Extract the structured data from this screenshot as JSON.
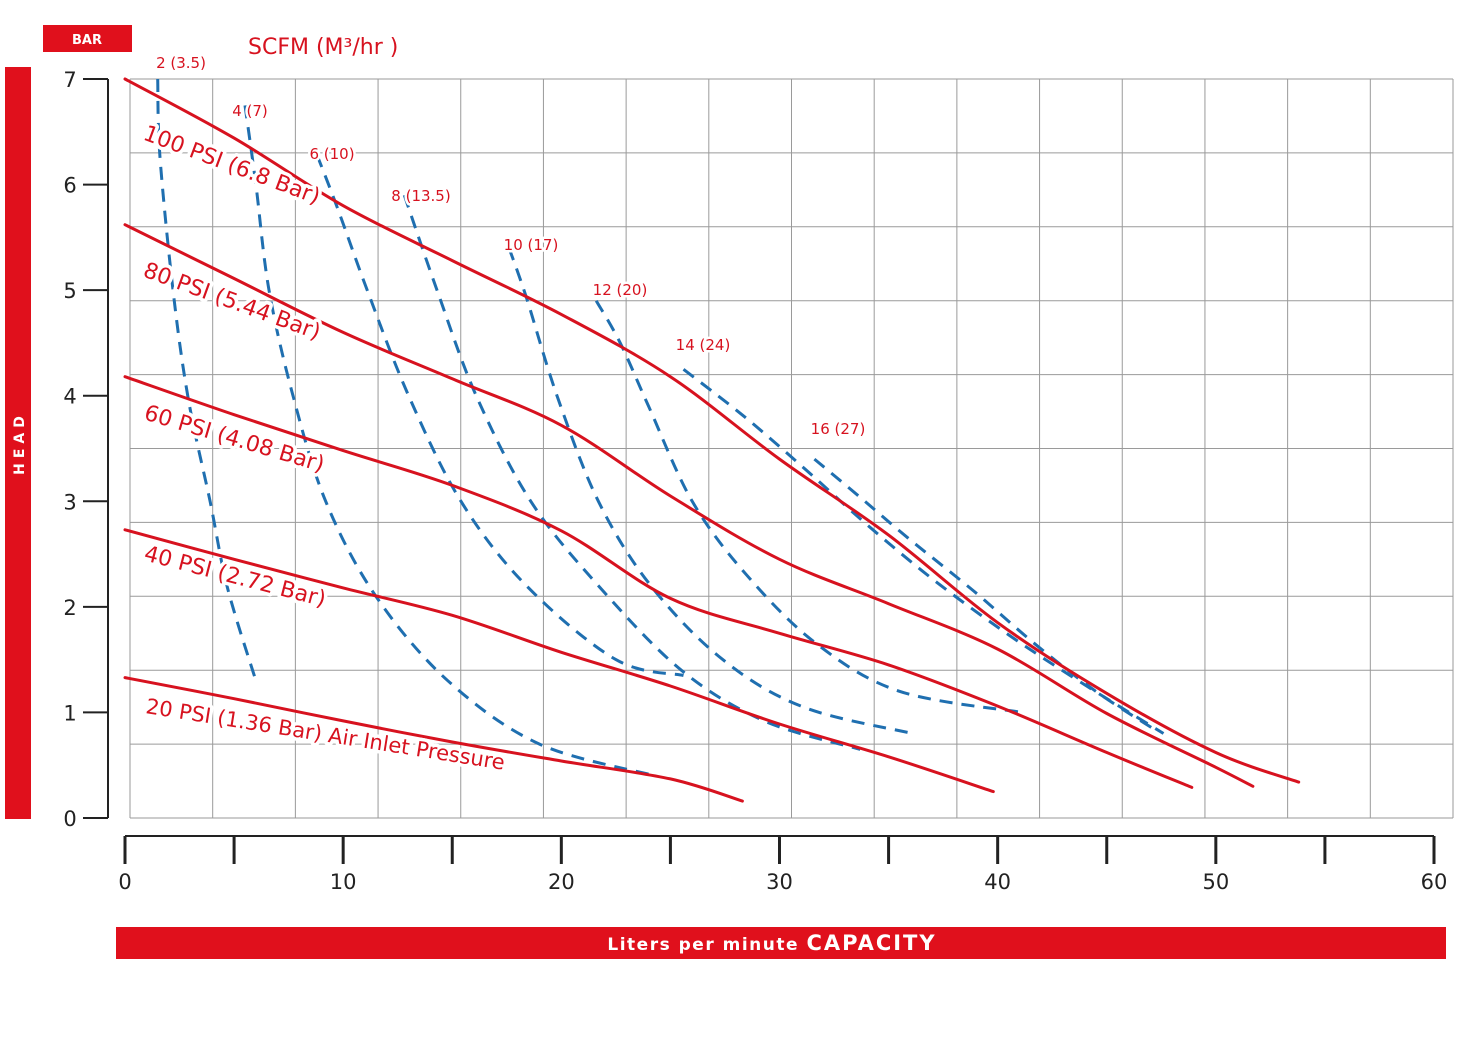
{
  "colors": {
    "accent": "#e0101c",
    "pressure_curve": "#d7121f",
    "air_curve": "#1f6fb0",
    "grid": "#9a9a9a",
    "axis": "#222222",
    "banner_text": "#ffffff"
  },
  "labels": {
    "y_unit_badge": "BAR",
    "y_axis_banner": "HEAD",
    "air_title": "SCFM (M³/hr )",
    "x_banner_prefix": "Liters per minute ",
    "x_banner_main": "CAPACITY"
  },
  "chart_data": {
    "type": "line",
    "x": {
      "ticks": [
        0,
        10,
        20,
        30,
        40,
        50,
        60
      ],
      "tick_labels": [
        "0",
        "10",
        "20",
        "30",
        "40",
        "50",
        "60"
      ],
      "range": [
        0,
        60
      ]
    },
    "y": {
      "ticks": [
        0,
        1,
        2,
        3,
        4,
        5,
        6,
        7
      ],
      "tick_labels": [
        "0",
        "1",
        "2",
        "3",
        "4",
        "5",
        "6",
        "7"
      ],
      "range": [
        0,
        7
      ]
    },
    "grid": true,
    "grid_columns": 16,
    "grid_rows": 10,
    "pressure_series": [
      {
        "name": "100 PSI (6.8 Bar)",
        "points": [
          [
            0.0,
            7.0
          ],
          [
            5.0,
            6.44
          ],
          [
            10.0,
            5.8
          ],
          [
            15.0,
            5.28
          ],
          [
            20.0,
            4.77
          ],
          [
            25.0,
            4.18
          ],
          [
            30.0,
            3.4
          ],
          [
            35.0,
            2.68
          ],
          [
            40.0,
            1.85
          ],
          [
            45.0,
            1.18
          ],
          [
            50.0,
            0.62
          ],
          [
            53.8,
            0.34
          ]
        ]
      },
      {
        "name": "80 PSI (5.44 Bar)",
        "points": [
          [
            0.0,
            5.62
          ],
          [
            5.0,
            5.11
          ],
          [
            10.0,
            4.6
          ],
          [
            15.0,
            4.16
          ],
          [
            20.0,
            3.72
          ],
          [
            25.0,
            3.05
          ],
          [
            30.0,
            2.45
          ],
          [
            35.0,
            2.03
          ],
          [
            40.0,
            1.6
          ],
          [
            45.0,
            0.99
          ],
          [
            50.0,
            0.48
          ],
          [
            51.7,
            0.3
          ]
        ]
      },
      {
        "name": "60 PSI (4.08 Bar)",
        "points": [
          [
            0.0,
            4.18
          ],
          [
            5.0,
            3.82
          ],
          [
            10.0,
            3.48
          ],
          [
            15.0,
            3.15
          ],
          [
            20.0,
            2.72
          ],
          [
            25.0,
            2.08
          ],
          [
            30.0,
            1.75
          ],
          [
            35.0,
            1.45
          ],
          [
            40.0,
            1.06
          ],
          [
            45.0,
            0.62
          ],
          [
            48.9,
            0.29
          ]
        ]
      },
      {
        "name": "40 PSI (2.72 Bar)",
        "points": [
          [
            0.0,
            2.73
          ],
          [
            5.0,
            2.45
          ],
          [
            10.0,
            2.18
          ],
          [
            15.0,
            1.92
          ],
          [
            20.0,
            1.57
          ],
          [
            25.0,
            1.25
          ],
          [
            30.0,
            0.89
          ],
          [
            35.0,
            0.58
          ],
          [
            39.8,
            0.25
          ]
        ]
      },
      {
        "name": "20 PSI (1.36 Bar) Air Inlet Pressure",
        "points": [
          [
            0.0,
            1.33
          ],
          [
            5.0,
            1.13
          ],
          [
            10.0,
            0.92
          ],
          [
            15.0,
            0.72
          ],
          [
            20.0,
            0.54
          ],
          [
            25.0,
            0.37
          ],
          [
            28.3,
            0.16
          ]
        ]
      }
    ],
    "air_series": [
      {
        "name": "2 (3.5)",
        "points": [
          [
            1.5,
            7.0
          ],
          [
            1.6,
            6.27
          ],
          [
            2.2,
            5.0
          ],
          [
            2.9,
            3.97
          ],
          [
            3.9,
            3.0
          ],
          [
            4.7,
            2.18
          ],
          [
            6.0,
            1.3
          ]
        ]
      },
      {
        "name": "4 (7)",
        "points": [
          [
            5.5,
            6.75
          ],
          [
            6.0,
            6.0
          ],
          [
            6.6,
            5.0
          ],
          [
            7.7,
            4.0
          ],
          [
            9.2,
            3.0
          ],
          [
            11.5,
            2.1
          ],
          [
            14.8,
            1.3
          ],
          [
            19.0,
            0.7
          ],
          [
            24.3,
            0.4
          ]
        ]
      },
      {
        "name": "6 (10)",
        "points": [
          [
            8.8,
            6.28
          ],
          [
            9.7,
            5.8
          ],
          [
            11.1,
            5.0
          ],
          [
            13.0,
            4.0
          ],
          [
            15.4,
            3.0
          ],
          [
            18.4,
            2.2
          ],
          [
            22.5,
            1.5
          ],
          [
            25.6,
            1.35
          ]
        ]
      },
      {
        "name": "8 (13.5)",
        "points": [
          [
            12.8,
            5.9
          ],
          [
            14.3,
            5.0
          ],
          [
            16.1,
            4.0
          ],
          [
            18.6,
            3.0
          ],
          [
            21.7,
            2.2
          ],
          [
            25.5,
            1.4
          ],
          [
            29.3,
            0.92
          ],
          [
            33.7,
            0.65
          ]
        ]
      },
      {
        "name": "10 (17)",
        "points": [
          [
            17.6,
            5.4
          ],
          [
            18.4,
            4.93
          ],
          [
            19.8,
            4.0
          ],
          [
            21.7,
            3.0
          ],
          [
            24.1,
            2.2
          ],
          [
            27.4,
            1.5
          ],
          [
            31.1,
            1.05
          ],
          [
            36.1,
            0.8
          ]
        ]
      },
      {
        "name": "12 (20)",
        "points": [
          [
            21.6,
            4.9
          ],
          [
            22.7,
            4.5
          ],
          [
            24.0,
            3.9
          ],
          [
            26.0,
            3.0
          ],
          [
            28.5,
            2.3
          ],
          [
            31.7,
            1.65
          ],
          [
            35.5,
            1.2
          ],
          [
            41.1,
            1.0
          ]
        ]
      },
      {
        "name": "14 (24)",
        "points": [
          [
            25.6,
            4.25
          ],
          [
            28.4,
            3.8
          ],
          [
            31.2,
            3.3
          ],
          [
            34.0,
            2.78
          ],
          [
            37.1,
            2.25
          ],
          [
            40.4,
            1.75
          ],
          [
            43.7,
            1.3
          ],
          [
            47.6,
            0.8
          ]
        ]
      },
      {
        "name": "16 (27)",
        "points": [
          [
            31.6,
            3.4
          ],
          [
            33.8,
            3.02
          ],
          [
            35.9,
            2.65
          ],
          [
            38.9,
            2.15
          ],
          [
            41.7,
            1.65
          ],
          [
            44.5,
            1.2
          ],
          [
            47.1,
            0.85
          ]
        ]
      }
    ]
  }
}
